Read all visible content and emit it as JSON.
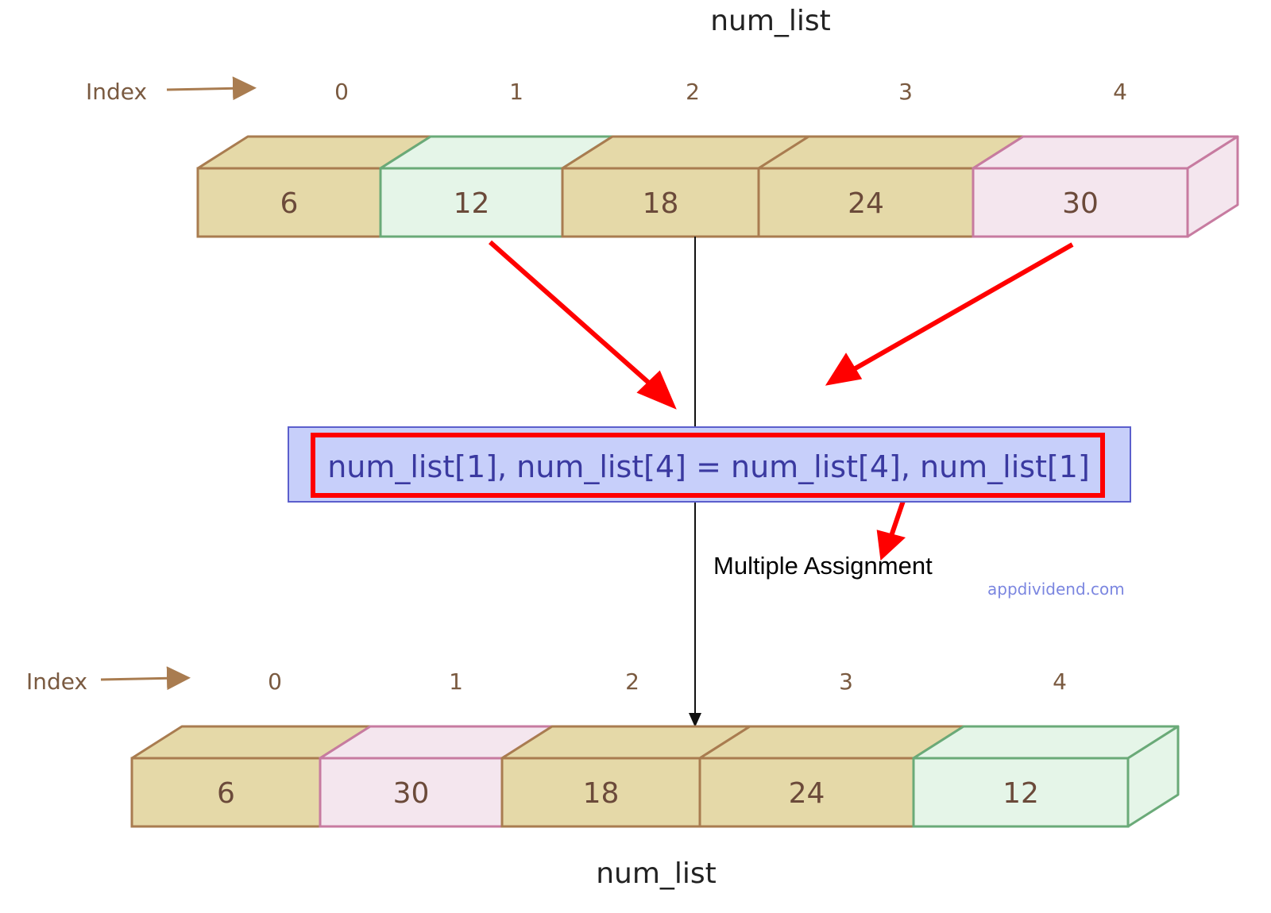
{
  "top_list": {
    "title": "num_list",
    "index_label": "Index",
    "indices": [
      "0",
      "1",
      "2",
      "3",
      "4"
    ],
    "values": [
      "6",
      "12",
      "18",
      "24",
      "30"
    ],
    "cell_colors": [
      "tan",
      "green",
      "tan",
      "tan",
      "pink"
    ]
  },
  "statement": "num_list[1], num_list[4] = num_list[4], num_list[1]",
  "annotation": "Multiple Assignment",
  "watermark": "appdividend.com",
  "bottom_list": {
    "title": "num_list",
    "index_label": "Index",
    "indices": [
      "0",
      "1",
      "2",
      "3",
      "4"
    ],
    "values": [
      "6",
      "30",
      "18",
      "24",
      "12"
    ],
    "cell_colors": [
      "tan",
      "pink",
      "tan",
      "tan",
      "green"
    ]
  },
  "palette": {
    "tan": {
      "fill": "#e5d9a8",
      "stroke": "#a97c50"
    },
    "green": {
      "fill": "#e5f5e8",
      "stroke": "#6aaa78"
    },
    "pink": {
      "fill": "#f4e6ee",
      "stroke": "#c77ba0"
    },
    "highlight": "#ff0000",
    "statement_fill": "#c7cffa",
    "statement_stroke": "#5b5fcc"
  }
}
